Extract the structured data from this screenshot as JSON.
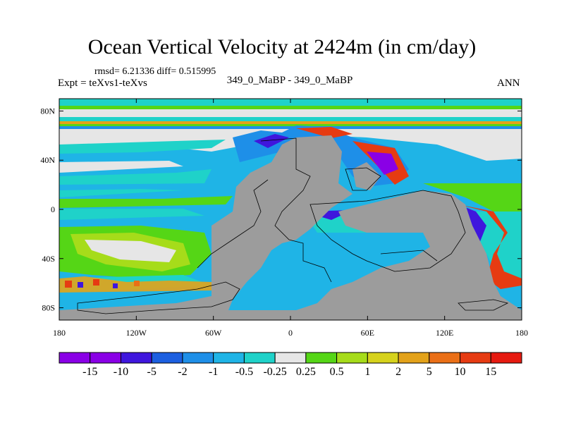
{
  "title": "Ocean Vertical Velocity at 2424m (in cm/day)",
  "stats": "rmsd= 6.21336 diff= 0.515995",
  "experiment": "Expt = teXvs1-teXvs",
  "runs": "349_0_MaBP - 349_0_MaBP",
  "season": "ANN",
  "colors": {
    "land": "#9c9c9c",
    "palette": [
      "#8a00e6",
      "#3f16dd",
      "#1c5fe0",
      "#1e8fe8",
      "#1fb4e6",
      "#1fd2c9",
      "#e6e6e6",
      "#55d616",
      "#a6dc1a",
      "#d6d21c",
      "#e3a21a",
      "#ea6f17",
      "#e63b12",
      "#e61a10"
    ]
  },
  "map": {
    "lat_labels": [
      "80N",
      "40N",
      "0",
      "40S",
      "80S"
    ],
    "lon_labels": [
      "180",
      "120W",
      "60W",
      "0",
      "60E",
      "120E",
      "180"
    ]
  },
  "colorbar": {
    "labels": [
      "-15",
      "-10",
      "-5",
      "-2",
      "-1",
      "-0.5",
      "-0.25",
      "0.25",
      "0.5",
      "1",
      "2",
      "5",
      "10",
      "15"
    ]
  }
}
